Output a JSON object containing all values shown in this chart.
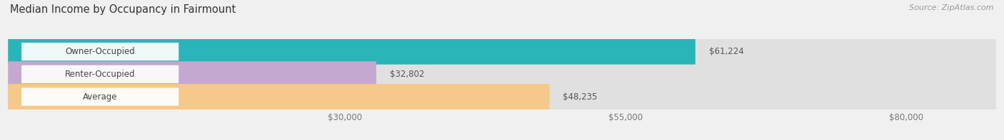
{
  "title": "Median Income by Occupancy in Fairmount",
  "source": "Source: ZipAtlas.com",
  "categories": [
    "Owner-Occupied",
    "Renter-Occupied",
    "Average"
  ],
  "values": [
    61224,
    32802,
    48235
  ],
  "bar_colors": [
    "#2ab5b8",
    "#c4a8d0",
    "#f5c98a"
  ],
  "bar_labels": [
    "$61,224",
    "$32,802",
    "$48,235"
  ],
  "x_ticks": [
    30000,
    55000,
    80000
  ],
  "x_tick_labels": [
    "$30,000",
    "$55,000",
    "$80,000"
  ],
  "xlim_max": 88000,
  "background_color": "#f0f0f0",
  "bar_bg_color": "#e0e0e0",
  "title_fontsize": 10.5,
  "label_fontsize": 8.5,
  "tick_fontsize": 8.5,
  "source_fontsize": 8
}
